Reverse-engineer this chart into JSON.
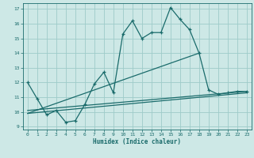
{
  "title": "",
  "xlabel": "Humidex (Indice chaleur)",
  "xlim": [
    -0.5,
    23.5
  ],
  "ylim": [
    8.8,
    17.4
  ],
  "yticks": [
    9,
    10,
    11,
    12,
    13,
    14,
    15,
    16,
    17
  ],
  "xticks": [
    0,
    1,
    2,
    3,
    4,
    5,
    6,
    7,
    8,
    9,
    10,
    11,
    12,
    13,
    14,
    15,
    16,
    17,
    18,
    19,
    20,
    21,
    22,
    23
  ],
  "bg_color": "#cde8e6",
  "grid_color": "#9ecbc9",
  "line_color": "#1a6b6b",
  "line1_x": [
    0,
    1,
    2,
    3,
    4,
    5,
    6,
    7,
    8,
    9,
    10,
    11,
    12,
    13,
    14,
    15,
    16,
    17,
    18,
    19,
    20,
    21,
    22,
    23
  ],
  "line1_y": [
    12.0,
    10.9,
    9.8,
    10.1,
    9.3,
    9.4,
    10.5,
    11.9,
    12.7,
    11.3,
    15.3,
    16.2,
    15.0,
    15.4,
    15.4,
    17.1,
    16.3,
    15.6,
    14.0,
    11.5,
    11.2,
    11.3,
    11.4,
    11.4
  ],
  "line2_x": [
    0,
    23
  ],
  "line2_y": [
    10.1,
    11.4
  ],
  "line3_x": [
    0,
    23
  ],
  "line3_y": [
    9.9,
    11.3
  ],
  "line4_x": [
    0,
    18
  ],
  "line4_y": [
    9.9,
    14.0
  ]
}
